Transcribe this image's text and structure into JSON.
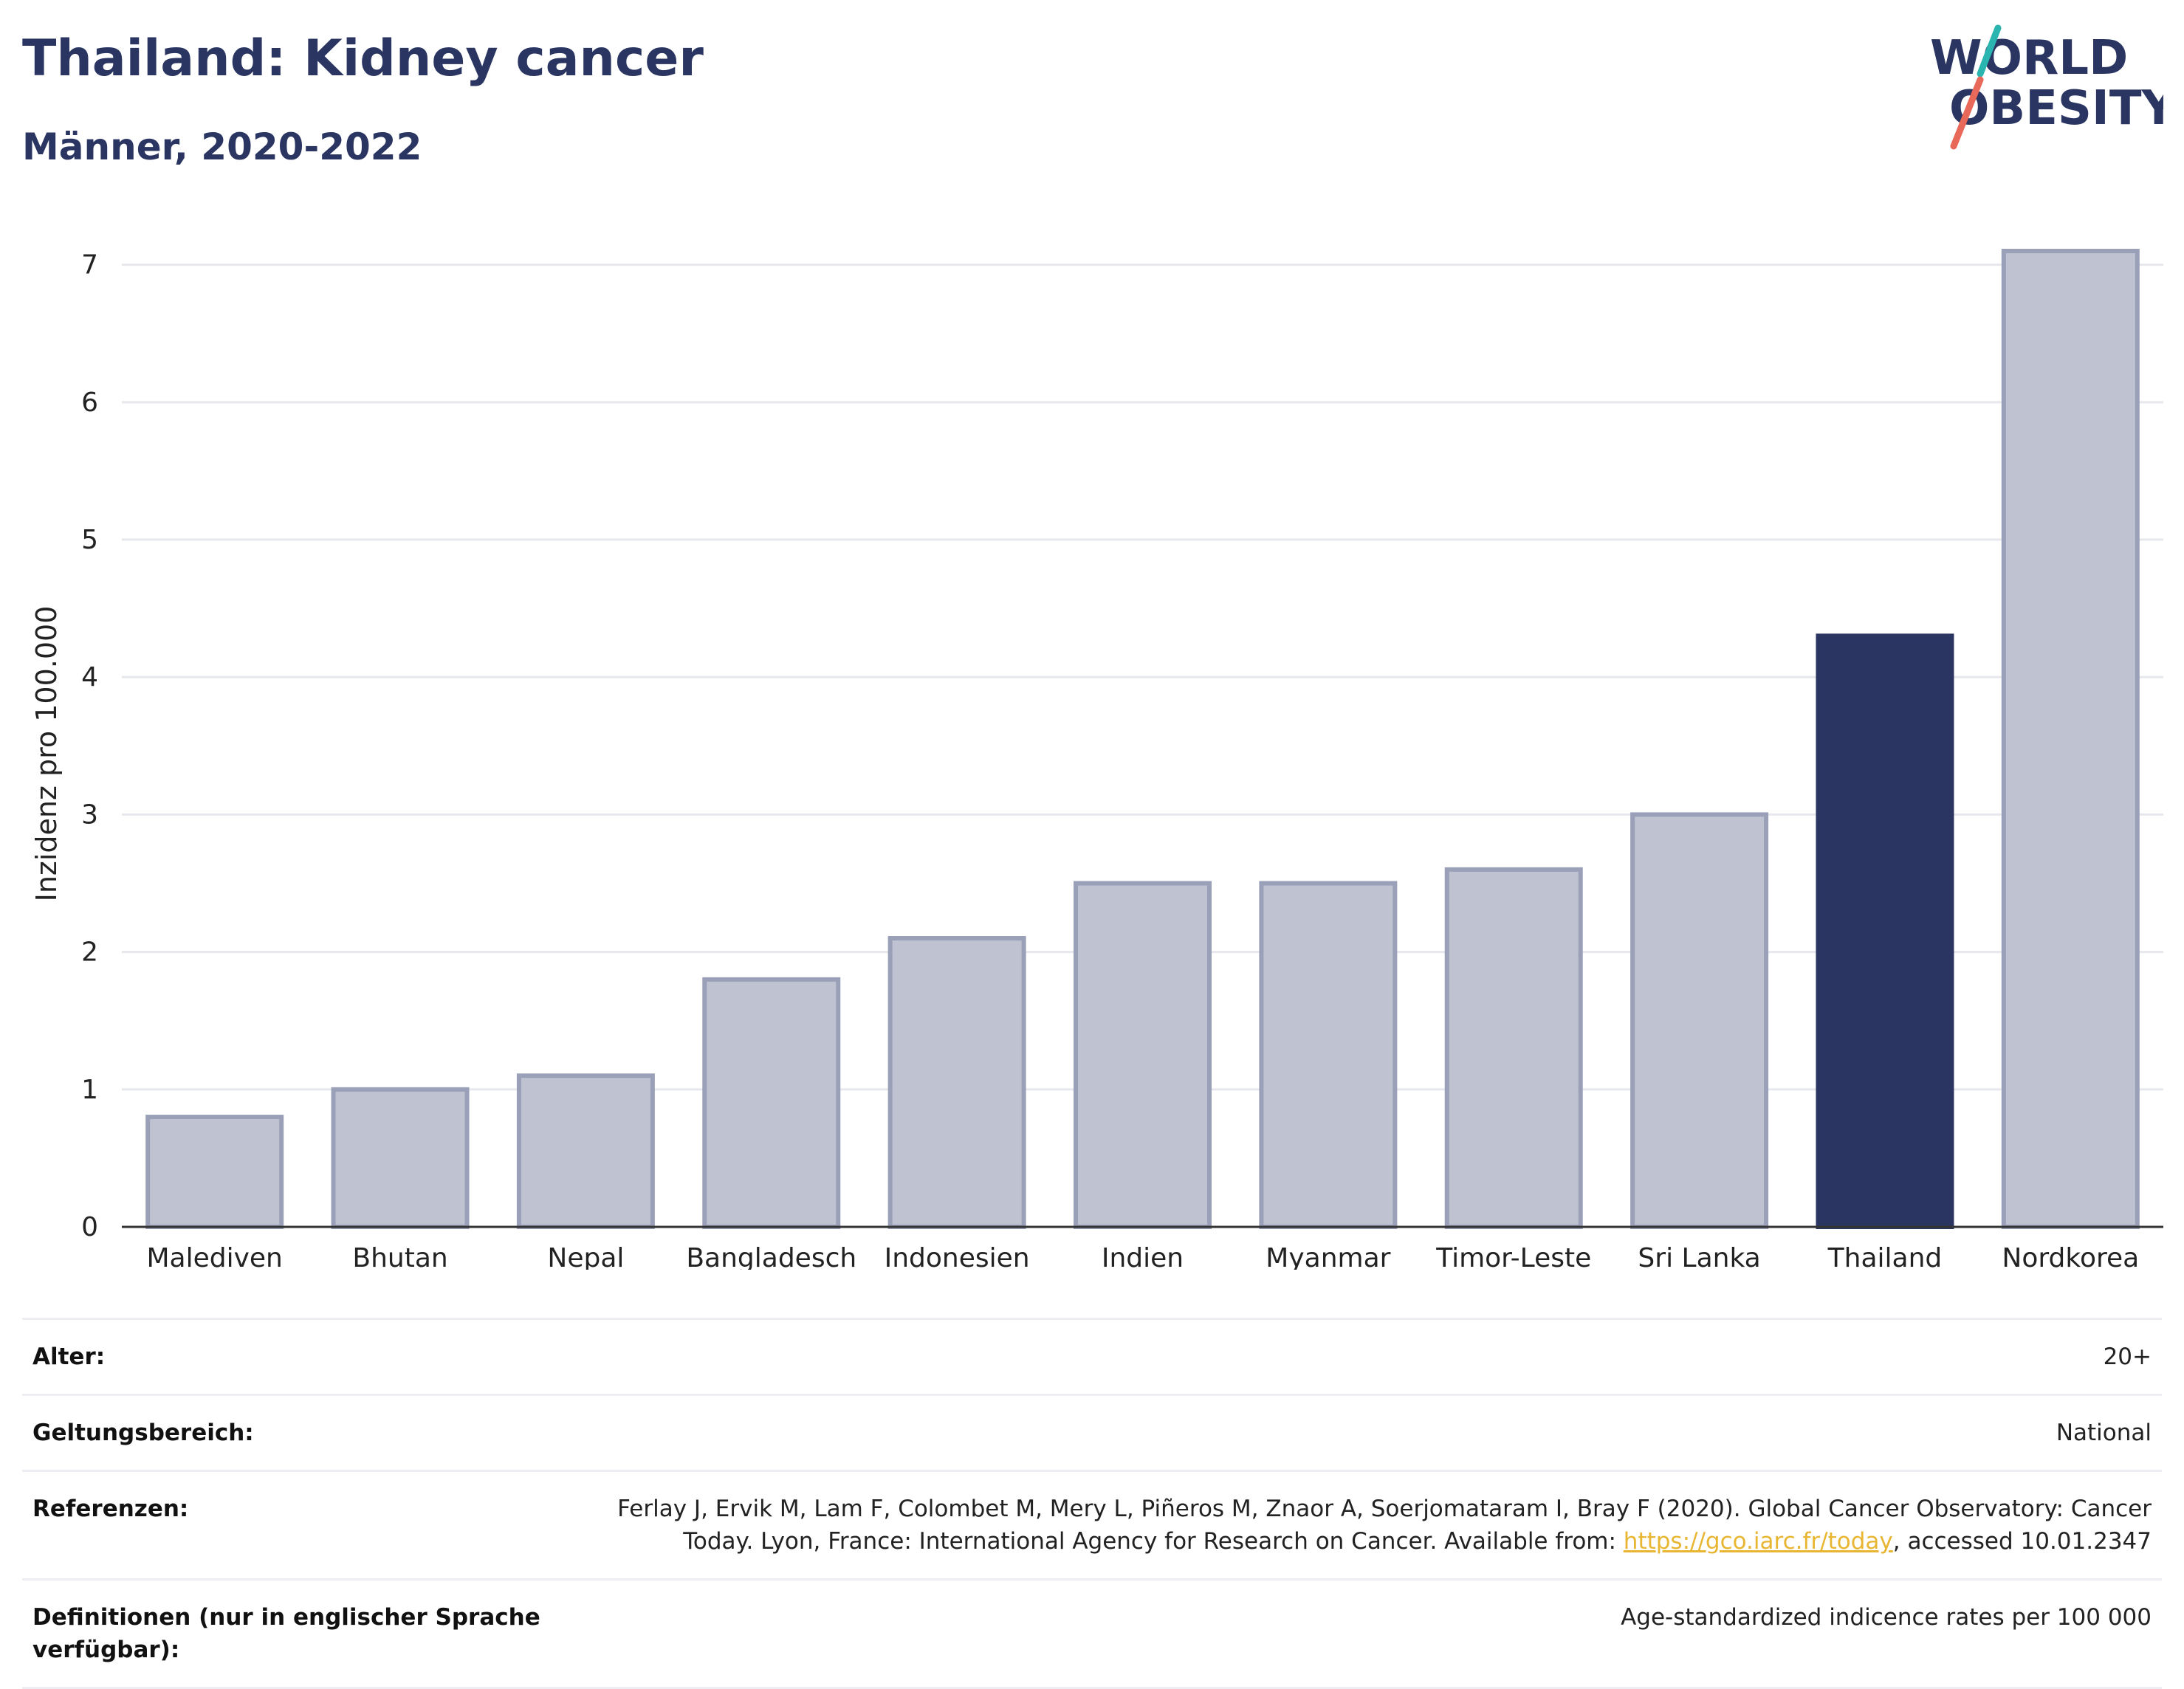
{
  "header": {
    "title": "Thailand: Kidney cancer",
    "subtitle": "Männer, 2020-2022"
  },
  "logo": {
    "line1": "WORLD",
    "line2": "OBESITY",
    "icon": "world-obesity-logo",
    "colors": {
      "text": "#2a3562",
      "slash_top": "#2bb5b0",
      "slash_bottom": "#e8685a"
    }
  },
  "chart_data": {
    "type": "bar",
    "title": "Thailand: Kidney cancer",
    "subtitle": "Männer, 2020-2022",
    "xlabel": "",
    "ylabel": "Inzidenz pro 100.000",
    "categories": [
      "Malediven",
      "Bhutan",
      "Nepal",
      "Bangladesch",
      "Indonesien",
      "Indien",
      "Myanmar",
      "Timor-Leste",
      "Sri Lanka",
      "Thailand",
      "Nordkorea"
    ],
    "values": [
      0.8,
      1.0,
      1.1,
      1.8,
      2.1,
      2.5,
      2.5,
      2.6,
      3.0,
      4.3,
      7.1
    ],
    "highlight": "Thailand",
    "ylim": [
      0,
      7.1
    ],
    "yticks": [
      0,
      1,
      2,
      3,
      4,
      5,
      6,
      7
    ],
    "grid": true,
    "colors": {
      "bar": "#bfc2d0",
      "bar_border": "#9aa0b8",
      "highlight": "#2a3562",
      "grid": "#e6e8ee",
      "axis": "#333333"
    }
  },
  "meta": {
    "rows": [
      {
        "label": "Alter:",
        "value": "20+"
      },
      {
        "label": "Geltungsbereich:",
        "value": "National"
      },
      {
        "label": "Referenzen:",
        "value_line1": "Ferlay J, Ervik M, Lam F, Colombet M, Mery L, Piñeros M, Znaor A, Soerjomataram I, Bray F (2020). Global Cancer Observatory: Cancer",
        "value_line2_pre": "Today. Lyon, France: International Agency for Research on Cancer. Available from: ",
        "link": "https://gco.iarc.fr/today",
        "value_line2_post": ", accessed 10.01.2347"
      },
      {
        "label": "Definitionen (nur in englischer Sprache verfügbar):",
        "value": "Age-standardized indicence rates per 100 000"
      }
    ]
  }
}
